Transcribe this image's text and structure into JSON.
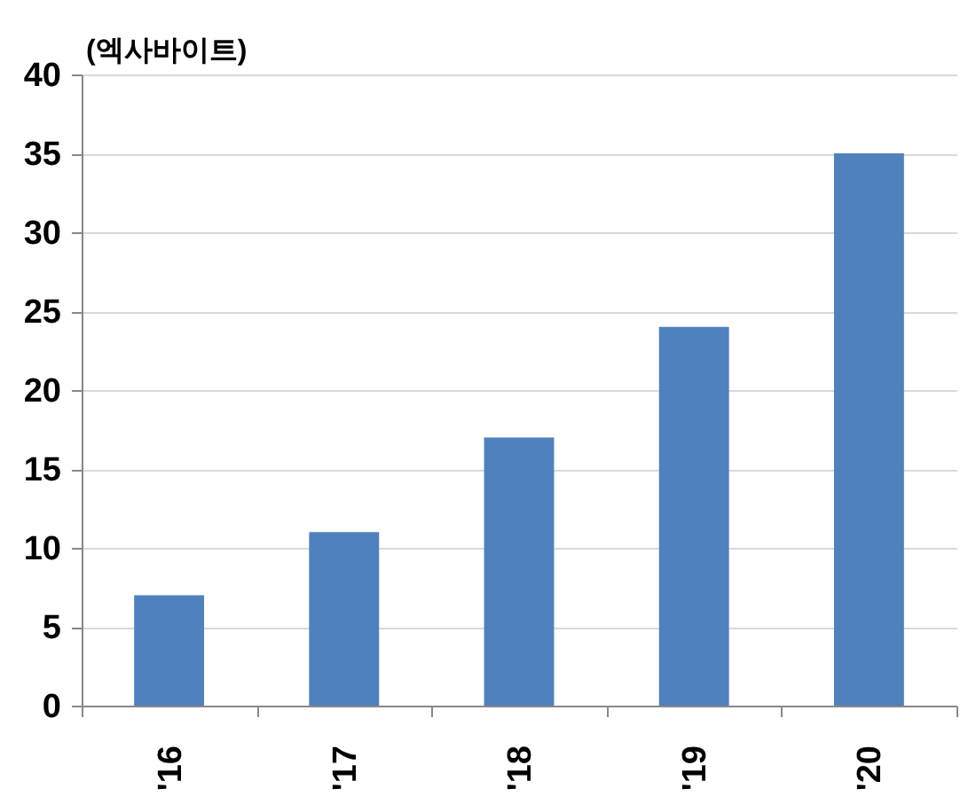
{
  "chart_data": {
    "type": "bar",
    "ylabel": "(엑사바이트)",
    "categories": [
      "'16",
      "'17",
      "'18",
      "'19",
      "'20"
    ],
    "values": [
      7,
      11,
      17,
      24,
      35
    ],
    "color": "#4f81bd",
    "ylim": [
      0,
      40
    ],
    "yticks": [
      0,
      5,
      10,
      15,
      20,
      25,
      30,
      35,
      40
    ],
    "grid": "y"
  }
}
